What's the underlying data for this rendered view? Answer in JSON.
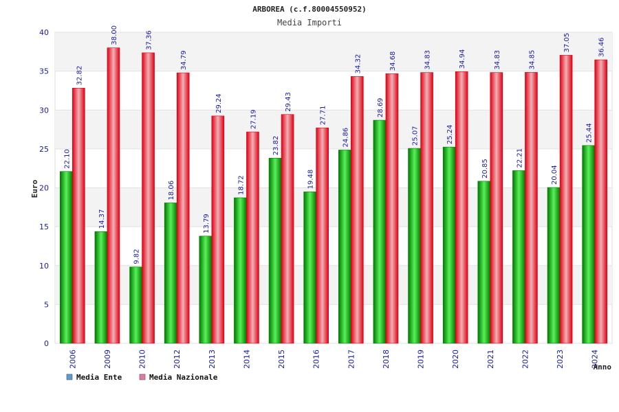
{
  "colors": {
    "ente_dark": "#007a00",
    "ente_light": "#59f059",
    "naz_dark": "#e00014",
    "naz_light": "#f0b0b6",
    "legend_ente": "#5b9bd5",
    "legend_naz": "#e07aa8",
    "label_blue": "#1a1aa0"
  },
  "chart_data": {
    "type": "bar",
    "title": "ARBOREA (c.f.80004550952)",
    "subtitle": "Media Importi",
    "ylabel": "Euro",
    "xlabel": "Anno",
    "ylim": [
      0,
      40
    ],
    "yticks": [
      "0",
      "5",
      "10",
      "15",
      "20",
      "25",
      "30",
      "35",
      "40"
    ],
    "grid": "horizontal bands",
    "legend_position": "bottom-left",
    "categories": [
      "2006",
      "2009",
      "2010",
      "2012",
      "2013",
      "2014",
      "2015",
      "2016",
      "2017",
      "2018",
      "2019",
      "2020",
      "2021",
      "2022",
      "2023",
      "2024"
    ],
    "series": [
      {
        "name": "Media Ente",
        "values": [
          22.1,
          14.37,
          9.82,
          18.06,
          13.79,
          18.72,
          23.82,
          19.48,
          24.86,
          28.69,
          25.07,
          25.24,
          20.85,
          22.21,
          20.04,
          25.44
        ],
        "labels": [
          "22.10",
          "14.37",
          "9.82",
          "18.06",
          "13.79",
          "18.72",
          "23.82",
          "19.48",
          "24.86",
          "28.69",
          "25.07",
          "25.24",
          "20.85",
          "22.21",
          "20.04",
          "25.44"
        ]
      },
      {
        "name": "Media Nazionale",
        "values": [
          32.82,
          38.0,
          37.36,
          34.79,
          29.24,
          27.19,
          29.43,
          27.71,
          34.32,
          34.68,
          34.83,
          34.94,
          34.83,
          34.85,
          37.05,
          36.46
        ],
        "labels": [
          "32.82",
          "38.00",
          "37.36",
          "34.79",
          "29.24",
          "27.19",
          "29.43",
          "27.71",
          "34.32",
          "34.68",
          "34.83",
          "34.94",
          "34.83",
          "34.85",
          "37.05",
          "36.46"
        ]
      }
    ]
  }
}
